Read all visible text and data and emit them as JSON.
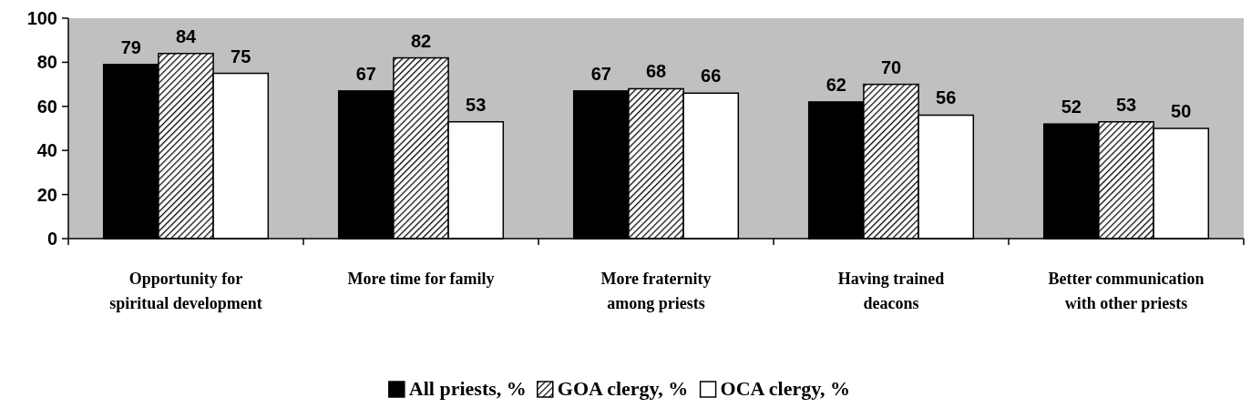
{
  "chart_data": {
    "type": "bar",
    "categories": [
      "Opportunity for spiritual development",
      "More time for family",
      "More fraternity among priests",
      "Having trained deacons",
      "Better communication with other priests"
    ],
    "series": [
      {
        "name": "All priests, %",
        "color": "#000000",
        "values": [
          79,
          67,
          67,
          62,
          52
        ]
      },
      {
        "name": "GOA clergy, %",
        "color": "#000000",
        "values": [
          84,
          82,
          68,
          70,
          53
        ]
      },
      {
        "name": "OCA clergy, %",
        "color": "#ffffff",
        "values": [
          75,
          53,
          66,
          56,
          50
        ]
      }
    ],
    "ylim": [
      0,
      100
    ],
    "yticks": [
      0,
      20,
      40,
      60,
      80,
      100
    ],
    "grid": false,
    "legend": "bottom",
    "data_labels": true
  }
}
